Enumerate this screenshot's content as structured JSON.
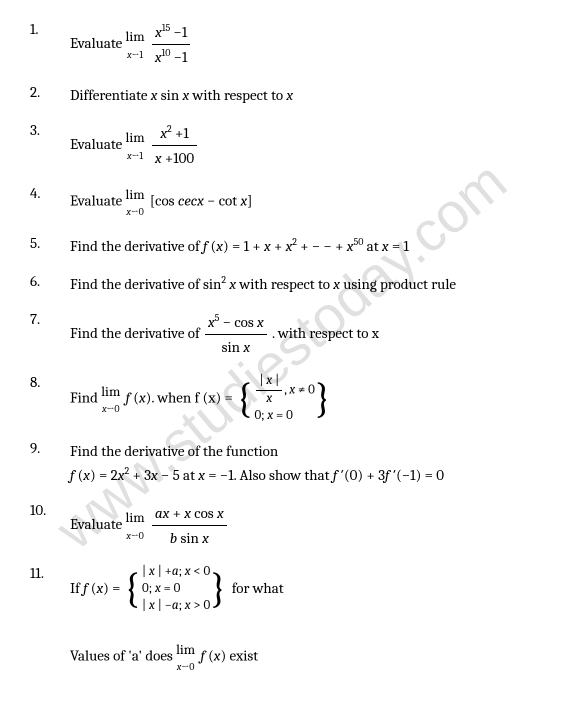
{
  "watermark": "www.studiestoday.com",
  "problems": [
    {
      "num": "1.",
      "text": "Evaluate ",
      "math": "lim1"
    },
    {
      "num": "2.",
      "text": "Differentiate  x sin x with respect to  x"
    },
    {
      "num": "3.",
      "text": "Evaluate ",
      "math": "lim2"
    },
    {
      "num": "4.",
      "text": "Evaluate ",
      "math": "lim3"
    },
    {
      "num": "5.",
      "text": "Find the derivative of  f (x) = 1 + x + x² + − − + x⁵⁰ at  x = 1"
    },
    {
      "num": "6.",
      "text": "Find the derivative of sin² x with respect to  x using product rule"
    },
    {
      "num": "7.",
      "text": "Find the derivative of ",
      "math": "frac1",
      "tail": ". with respect to x"
    },
    {
      "num": "8.",
      "text": "Find ",
      "math": "lim4",
      "mid": ". when  f (x) = ",
      "piece": "p1"
    },
    {
      "num": "9.",
      "text": "Find the derivative of the function",
      "line2": "f (x) = 2x² + 3x − 5 at  x = −1. Also show that  f ′(0) + 3f ′(−1) = 0"
    },
    {
      "num": "10.",
      "text": "Evaluate ",
      "math": "lim5"
    },
    {
      "num": "11.",
      "text": "If  f (x) = ",
      "piece": "p2",
      "tail": " for what",
      "line2": "Values of 'a' does ",
      "math2": "lim6",
      "tail2": " exist"
    }
  ]
}
